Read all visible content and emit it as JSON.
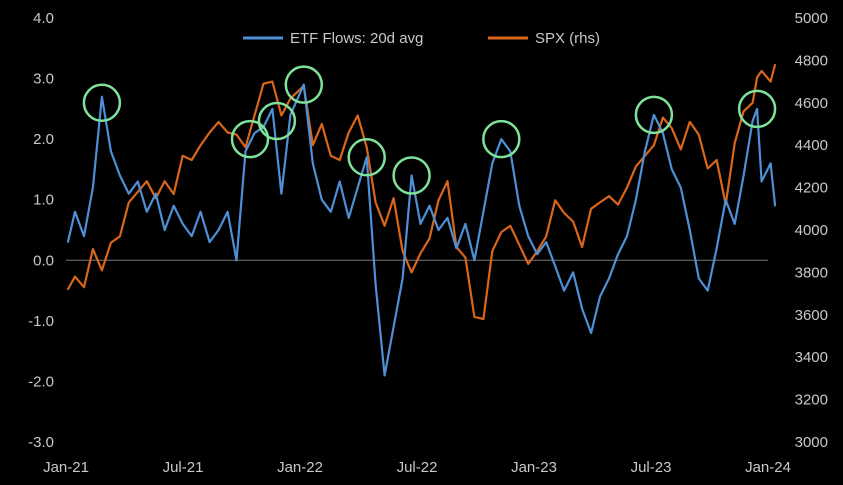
{
  "chart_data": {
    "type": "line",
    "title": "",
    "xlabel": "",
    "ylabel": "",
    "grid": false,
    "legend_position": "top-center",
    "x_ticks": [
      "Jan-21",
      "Jul-21",
      "Jan-22",
      "Jul-22",
      "Jan-23",
      "Jul-23",
      "Jan-24"
    ],
    "x_range": [
      "2021-01-01",
      "2024-01-01"
    ],
    "y_left": {
      "ylim": [
        -3.0,
        4.0
      ],
      "ticks": [
        "-3.0",
        "-2.0",
        "-1.0",
        "0.0",
        "1.0",
        "2.0",
        "3.0",
        "4.0"
      ]
    },
    "y_right": {
      "ylim": [
        3000,
        5000
      ],
      "ticks": [
        "3000",
        "3200",
        "3400",
        "3600",
        "3800",
        "4000",
        "4200",
        "4400",
        "4600",
        "4800",
        "5000"
      ]
    },
    "series": [
      {
        "name": "ETF Flows: 20d avg",
        "axis": "left",
        "color": "#4f8fd6",
        "points": [
          [
            "2021-01-04",
            0.3
          ],
          [
            "2021-01-15",
            0.8
          ],
          [
            "2021-01-29",
            0.4
          ],
          [
            "2021-02-12",
            1.2
          ],
          [
            "2021-02-26",
            2.7
          ],
          [
            "2021-03-12",
            1.8
          ],
          [
            "2021-03-26",
            1.4
          ],
          [
            "2021-04-09",
            1.1
          ],
          [
            "2021-04-23",
            1.3
          ],
          [
            "2021-05-07",
            0.8
          ],
          [
            "2021-05-21",
            1.1
          ],
          [
            "2021-06-04",
            0.5
          ],
          [
            "2021-06-18",
            0.9
          ],
          [
            "2021-07-02",
            0.6
          ],
          [
            "2021-07-16",
            0.4
          ],
          [
            "2021-07-30",
            0.8
          ],
          [
            "2021-08-13",
            0.3
          ],
          [
            "2021-08-27",
            0.5
          ],
          [
            "2021-09-10",
            0.8
          ],
          [
            "2021-09-24",
            0.0
          ],
          [
            "2021-10-08",
            1.8
          ],
          [
            "2021-10-22",
            2.1
          ],
          [
            "2021-11-05",
            2.2
          ],
          [
            "2021-11-19",
            2.5
          ],
          [
            "2021-12-03",
            1.1
          ],
          [
            "2021-12-17",
            2.4
          ],
          [
            "2022-01-07",
            2.9
          ],
          [
            "2022-01-21",
            1.6
          ],
          [
            "2022-02-04",
            1.0
          ],
          [
            "2022-02-18",
            0.8
          ],
          [
            "2022-03-04",
            1.3
          ],
          [
            "2022-03-18",
            0.7
          ],
          [
            "2022-04-01",
            1.2
          ],
          [
            "2022-04-15",
            1.7
          ],
          [
            "2022-04-29",
            -0.4
          ],
          [
            "2022-05-13",
            -1.9
          ],
          [
            "2022-05-27",
            -1.1
          ],
          [
            "2022-06-10",
            -0.3
          ],
          [
            "2022-06-24",
            1.4
          ],
          [
            "2022-07-08",
            0.6
          ],
          [
            "2022-07-22",
            0.9
          ],
          [
            "2022-08-05",
            0.5
          ],
          [
            "2022-08-19",
            0.7
          ],
          [
            "2022-09-02",
            0.2
          ],
          [
            "2022-09-16",
            0.6
          ],
          [
            "2022-09-30",
            0.0
          ],
          [
            "2022-10-14",
            0.8
          ],
          [
            "2022-10-28",
            1.6
          ],
          [
            "2022-11-11",
            2.0
          ],
          [
            "2022-11-25",
            1.8
          ],
          [
            "2022-12-09",
            0.9
          ],
          [
            "2022-12-23",
            0.4
          ],
          [
            "2023-01-06",
            0.1
          ],
          [
            "2023-01-20",
            0.3
          ],
          [
            "2023-02-03",
            -0.1
          ],
          [
            "2023-02-17",
            -0.5
          ],
          [
            "2023-03-03",
            -0.2
          ],
          [
            "2023-03-17",
            -0.8
          ],
          [
            "2023-03-31",
            -1.2
          ],
          [
            "2023-04-14",
            -0.6
          ],
          [
            "2023-04-28",
            -0.3
          ],
          [
            "2023-05-12",
            0.1
          ],
          [
            "2023-05-26",
            0.4
          ],
          [
            "2023-06-09",
            1.0
          ],
          [
            "2023-06-23",
            1.8
          ],
          [
            "2023-07-07",
            2.4
          ],
          [
            "2023-07-21",
            2.1
          ],
          [
            "2023-08-04",
            1.5
          ],
          [
            "2023-08-18",
            1.2
          ],
          [
            "2023-09-01",
            0.5
          ],
          [
            "2023-09-15",
            -0.3
          ],
          [
            "2023-09-29",
            -0.5
          ],
          [
            "2023-10-13",
            0.2
          ],
          [
            "2023-10-27",
            1.0
          ],
          [
            "2023-11-10",
            0.6
          ],
          [
            "2023-11-24",
            1.4
          ],
          [
            "2023-12-08",
            2.3
          ],
          [
            "2023-12-15",
            2.5
          ],
          [
            "2023-12-22",
            1.3
          ],
          [
            "2024-01-05",
            1.6
          ],
          [
            "2024-01-12",
            0.9
          ]
        ]
      },
      {
        "name": "SPX (rhs)",
        "axis": "right",
        "color": "#d9661b",
        "points": [
          [
            "2021-01-04",
            3720
          ],
          [
            "2021-01-15",
            3780
          ],
          [
            "2021-01-29",
            3730
          ],
          [
            "2021-02-12",
            3910
          ],
          [
            "2021-02-26",
            3810
          ],
          [
            "2021-03-12",
            3940
          ],
          [
            "2021-03-26",
            3970
          ],
          [
            "2021-04-09",
            4130
          ],
          [
            "2021-04-23",
            4180
          ],
          [
            "2021-05-07",
            4230
          ],
          [
            "2021-05-21",
            4150
          ],
          [
            "2021-06-04",
            4230
          ],
          [
            "2021-06-18",
            4170
          ],
          [
            "2021-07-02",
            4350
          ],
          [
            "2021-07-16",
            4330
          ],
          [
            "2021-07-30",
            4400
          ],
          [
            "2021-08-13",
            4460
          ],
          [
            "2021-08-27",
            4510
          ],
          [
            "2021-09-10",
            4460
          ],
          [
            "2021-09-24",
            4450
          ],
          [
            "2021-10-08",
            4390
          ],
          [
            "2021-10-22",
            4540
          ],
          [
            "2021-11-05",
            4690
          ],
          [
            "2021-11-19",
            4700
          ],
          [
            "2021-12-03",
            4540
          ],
          [
            "2021-12-17",
            4620
          ],
          [
            "2022-01-07",
            4680
          ],
          [
            "2022-01-21",
            4400
          ],
          [
            "2022-02-04",
            4500
          ],
          [
            "2022-02-18",
            4350
          ],
          [
            "2022-03-04",
            4330
          ],
          [
            "2022-03-18",
            4460
          ],
          [
            "2022-04-01",
            4540
          ],
          [
            "2022-04-15",
            4390
          ],
          [
            "2022-04-29",
            4130
          ],
          [
            "2022-05-13",
            4020
          ],
          [
            "2022-05-27",
            4150
          ],
          [
            "2022-06-10",
            3900
          ],
          [
            "2022-06-24",
            3800
          ],
          [
            "2022-07-08",
            3890
          ],
          [
            "2022-07-22",
            3960
          ],
          [
            "2022-08-05",
            4140
          ],
          [
            "2022-08-19",
            4230
          ],
          [
            "2022-09-02",
            3920
          ],
          [
            "2022-09-16",
            3870
          ],
          [
            "2022-09-30",
            3590
          ],
          [
            "2022-10-14",
            3580
          ],
          [
            "2022-10-28",
            3900
          ],
          [
            "2022-11-11",
            3990
          ],
          [
            "2022-11-25",
            4020
          ],
          [
            "2022-12-09",
            3930
          ],
          [
            "2022-12-23",
            3840
          ],
          [
            "2023-01-06",
            3900
          ],
          [
            "2023-01-20",
            3970
          ],
          [
            "2023-02-03",
            4140
          ],
          [
            "2023-02-17",
            4080
          ],
          [
            "2023-03-03",
            4040
          ],
          [
            "2023-03-17",
            3920
          ],
          [
            "2023-03-31",
            4100
          ],
          [
            "2023-04-14",
            4130
          ],
          [
            "2023-04-28",
            4160
          ],
          [
            "2023-05-12",
            4120
          ],
          [
            "2023-05-26",
            4200
          ],
          [
            "2023-06-09",
            4300
          ],
          [
            "2023-06-23",
            4350
          ],
          [
            "2023-07-07",
            4400
          ],
          [
            "2023-07-21",
            4530
          ],
          [
            "2023-08-04",
            4480
          ],
          [
            "2023-08-18",
            4380
          ],
          [
            "2023-09-01",
            4510
          ],
          [
            "2023-09-15",
            4450
          ],
          [
            "2023-09-29",
            4290
          ],
          [
            "2023-10-13",
            4330
          ],
          [
            "2023-10-27",
            4120
          ],
          [
            "2023-11-10",
            4410
          ],
          [
            "2023-11-24",
            4560
          ],
          [
            "2023-12-08",
            4600
          ],
          [
            "2023-12-15",
            4720
          ],
          [
            "2023-12-22",
            4750
          ],
          [
            "2024-01-05",
            4700
          ],
          [
            "2024-01-12",
            4780
          ]
        ]
      }
    ],
    "annotations": {
      "type": "circle",
      "color": "#7fe29a",
      "points_left_axis": [
        [
          "2021-02-26",
          2.6
        ],
        [
          "2021-10-15",
          2.0
        ],
        [
          "2021-11-26",
          2.3
        ],
        [
          "2022-01-07",
          2.9
        ],
        [
          "2022-04-15",
          1.7
        ],
        [
          "2022-06-24",
          1.4
        ],
        [
          "2022-11-11",
          2.0
        ],
        [
          "2023-07-07",
          2.4
        ],
        [
          "2023-12-15",
          2.5
        ]
      ]
    }
  }
}
